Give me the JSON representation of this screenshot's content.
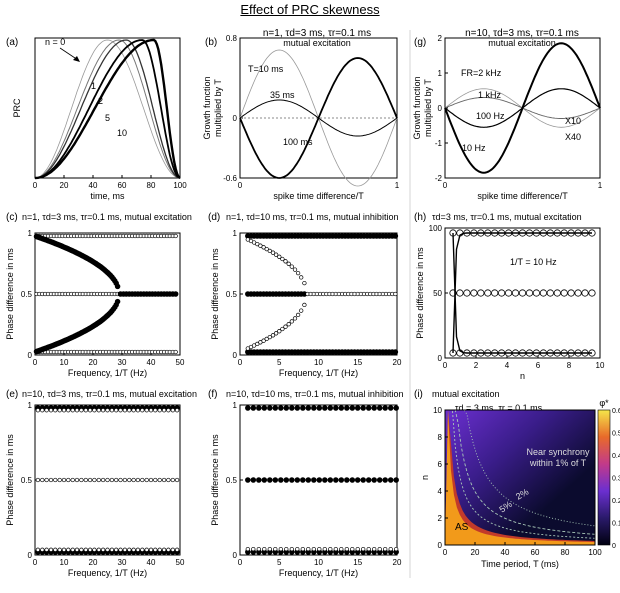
{
  "title": "Effect of PRC skewness",
  "panels": {
    "a": {
      "letter": "(a)",
      "ylabel": "PRC",
      "xlabel": "time, ms",
      "series_labels": [
        "n = 0",
        "1",
        "2",
        "5",
        "10"
      ]
    },
    "b": {
      "letter": "(b)",
      "title_main": "n=1, τd=3 ms, τr=0.1 ms",
      "title_sub": "mutual excitation",
      "ylabel_1": "Growth function",
      "ylabel_2": "multiplied by T",
      "xlabel": "spike time difference/T",
      "series_labels": [
        "T=10 ms",
        "35 ms",
        "100 ms"
      ]
    },
    "g": {
      "letter": "(g)",
      "title_main": "n=10, τd=3 ms, τr=0.1 ms",
      "title_sub": "mutual excitation",
      "ylabel_1": "Growth function",
      "ylabel_2": "multiplied by T",
      "xlabel": "spike time difference/T",
      "series_labels": [
        "FR=2 kHz",
        "1 kHz",
        "100 Hz",
        "10 Hz",
        "X10",
        "X40"
      ]
    },
    "c": {
      "letter": "(c)",
      "title": "n=1, τd=3 ms, τr=0.1 ms, mutual excitation",
      "ylabel": "Phase difference in ms",
      "xlabel": "Frequency, 1/T (Hz)"
    },
    "d": {
      "letter": "(d)",
      "title": "n=1, τd=10 ms, τr=0.1 ms, mutual inhibition",
      "ylabel": "Phase difference in ms",
      "xlabel": "Frequency, 1/T (Hz)"
    },
    "e": {
      "letter": "(e)",
      "title": "n=10, τd=3 ms, τr=0.1 ms, mutual excitation",
      "ylabel": "Phase difference in ms",
      "xlabel": "Frequency, 1/T (Hz)"
    },
    "f": {
      "letter": "(f)",
      "title": "n=10, τd=10 ms, τr=0.1 ms, mutual inhibition",
      "ylabel": "Phase difference in ms",
      "xlabel": "Frequency, 1/T (Hz)"
    },
    "h": {
      "letter": "(h)",
      "title": "τd=3 ms, τr=0.1 ms, mutual excitation",
      "ylabel": "Phase difference in ms",
      "xlabel": "n",
      "annotation": "1/T = 10 Hz"
    },
    "i": {
      "letter": "(i)",
      "title_1": "mutual excitation",
      "title_2": "τd = 3 ms, τr = 0.1 ms",
      "ylabel": "n",
      "xlabel": "Time period, T (ms)",
      "colorbar_label": "φ*",
      "annotations": [
        "Near synchrony",
        "within 1% of T",
        "2%",
        "5%",
        "AS"
      ]
    }
  },
  "colors": {
    "heatmap_top": "#0b0b2e",
    "heatmap_mid": "#6b2fd0",
    "heatmap_hot": "#c23a2a",
    "heatmap_as": "#f29a1a",
    "contour": "#a8c8b8"
  },
  "chart_data": [
    {
      "id": "a",
      "type": "line",
      "xlim": [
        0,
        100
      ],
      "ylim": [
        0,
        1
      ],
      "xticks": [
        0,
        20,
        40,
        60,
        80,
        100
      ],
      "yticks": [],
      "series": [
        {
          "name": "n = 0",
          "peak_x": 50
        },
        {
          "name": "1",
          "peak_x": 58
        },
        {
          "name": "2",
          "peak_x": 63
        },
        {
          "name": "5",
          "peak_x": 74
        },
        {
          "name": "10",
          "peak_x": 82
        }
      ]
    },
    {
      "id": "b",
      "type": "line",
      "xlim": [
        0,
        1
      ],
      "ylim": [
        -0.6,
        0.8
      ],
      "xtick_labels": [
        "0",
        "1"
      ],
      "ytick_labels": [
        "0.8",
        "0",
        "-0.6"
      ],
      "series": [
        {
          "name": "T=10 ms",
          "amplitude": 0.68
        },
        {
          "name": "35 ms",
          "amplitude": 0.18
        },
        {
          "name": "100 ms",
          "amplitude": -0.6
        }
      ]
    },
    {
      "id": "g",
      "type": "line",
      "xlim": [
        0,
        1
      ],
      "ylim": [
        -2,
        2
      ],
      "xtick_labels": [
        "0",
        "1"
      ],
      "yticks": [
        2,
        1,
        0,
        -1,
        -2
      ],
      "series": [
        {
          "name": "FR=2 kHz",
          "amplitude": 0.55
        },
        {
          "name": "1 kHz",
          "amplitude": 0.3
        },
        {
          "name": "100 Hz",
          "amplitude": -0.55
        },
        {
          "name": "10 Hz",
          "amplitude": -1.85
        }
      ]
    },
    {
      "id": "c",
      "type": "scatter",
      "xlim": [
        0,
        50
      ],
      "ylim": [
        0,
        1
      ],
      "xticks": [
        0,
        10,
        20,
        30,
        40,
        50
      ],
      "ytick_labels": [
        "0",
        "0.5",
        "1"
      ],
      "bifurcation_x": 29
    },
    {
      "id": "d",
      "type": "scatter",
      "xlim": [
        0,
        20
      ],
      "ylim": [
        0,
        1
      ],
      "xticks": [
        0,
        5,
        10,
        15,
        20
      ],
      "ytick_labels": [
        "0",
        "0.5",
        "1"
      ],
      "bifurcation_x": 8.5
    },
    {
      "id": "e",
      "type": "scatter",
      "xlim": [
        0,
        50
      ],
      "ylim": [
        0,
        1
      ],
      "xticks": [
        0,
        10,
        20,
        30,
        40,
        50
      ],
      "ytick_labels": [
        "0",
        "0.5",
        "1"
      ]
    },
    {
      "id": "f",
      "type": "scatter",
      "xlim": [
        0,
        20
      ],
      "ylim": [
        0,
        1
      ],
      "xticks": [
        0,
        5,
        10,
        15,
        20
      ],
      "ytick_labels": [
        "0",
        "0.5",
        "1"
      ]
    },
    {
      "id": "h",
      "type": "scatter",
      "xlim": [
        0,
        10
      ],
      "ylim": [
        0,
        100
      ],
      "xticks": [
        0,
        2,
        4,
        6,
        8,
        10
      ],
      "yticks": [
        0,
        50,
        100
      ]
    },
    {
      "id": "i",
      "type": "heatmap",
      "xlim": [
        0,
        100
      ],
      "ylim": [
        0,
        10
      ],
      "xticks": [
        0,
        20,
        40,
        60,
        80,
        100
      ],
      "yticks": [
        0,
        2,
        4,
        6,
        8,
        10
      ],
      "colorbar_ticks": [
        0,
        0.1,
        0.2,
        0.3,
        0.4,
        0.5,
        0.6
      ]
    }
  ]
}
